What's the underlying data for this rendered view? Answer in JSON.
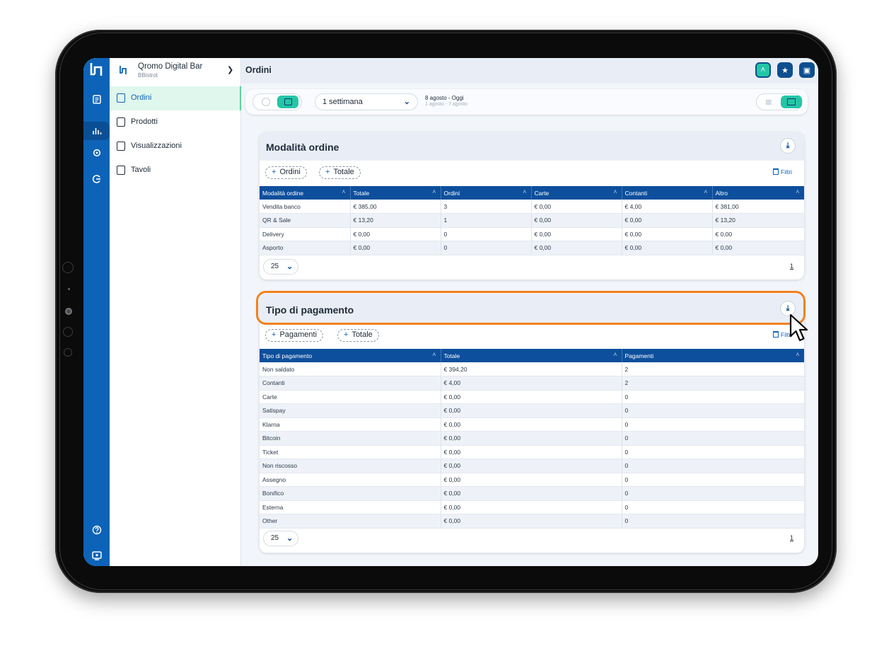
{
  "sidebar": {
    "venue_name": "Qromo Digital Bar",
    "venue_sub": "BBistrot",
    "items": [
      {
        "label": "Ordini",
        "active": true
      },
      {
        "label": "Prodotti",
        "active": false
      },
      {
        "label": "Visualizzazioni",
        "active": false
      },
      {
        "label": "Tavoli",
        "active": false
      }
    ],
    "rail_icons": [
      "logo-icon",
      "orders-icon",
      "stats-icon",
      "settings-icon",
      "integrations-icon",
      "help-icon",
      "screen-icon"
    ]
  },
  "header": {
    "title": "Ordini",
    "buttons": [
      "chevron-up-icon",
      "star-icon",
      "calendar-icon"
    ]
  },
  "filter_bar": {
    "period": "1 settimana",
    "date_range": "8 agosto - Oggi",
    "date_compare": "1 agosto - 7 agosto"
  },
  "colors": {
    "brand_blue": "#0d63b7",
    "table_header": "#0d4f9c",
    "accent_green": "#23c6a6",
    "highlight_orange": "#f0821e"
  },
  "order_mode": {
    "title": "Modalità ordine",
    "chips": [
      "Ordini",
      "Totale"
    ],
    "filters_label": "Filtri",
    "columns": [
      "Modalità ordine",
      "Totale",
      "Ordini",
      "Carte",
      "Contanti",
      "Altro"
    ],
    "rows": [
      [
        "Vendita banco",
        "€ 385,00",
        "3",
        "€ 0,00",
        "€ 4,00",
        "€ 381,00"
      ],
      [
        "QR & Sale",
        "€ 13,20",
        "1",
        "€ 0,00",
        "€ 0,00",
        "€ 13,20"
      ],
      [
        "Delivery",
        "€ 0,00",
        "0",
        "€ 0,00",
        "€ 0,00",
        "€ 0,00"
      ],
      [
        "Asporto",
        "€ 0,00",
        "0",
        "€ 0,00",
        "€ 0,00",
        "€ 0,00"
      ]
    ],
    "page_size": "25",
    "page": "1"
  },
  "payment_type": {
    "title": "Tipo di pagamento",
    "chips": [
      "Pagamenti",
      "Totale"
    ],
    "filters_label": "Filtri",
    "columns": [
      "Tipo di pagamento",
      "Totale",
      "Pagamenti"
    ],
    "rows": [
      [
        "Non saldato",
        "€ 394,20",
        "2"
      ],
      [
        "Contanti",
        "€ 4,00",
        "2"
      ],
      [
        "Carte",
        "€ 0,00",
        "0"
      ],
      [
        "Satispay",
        "€ 0,00",
        "0"
      ],
      [
        "Klarna",
        "€ 0,00",
        "0"
      ],
      [
        "Bitcoin",
        "€ 0,00",
        "0"
      ],
      [
        "Ticket",
        "€ 0,00",
        "0"
      ],
      [
        "Non riscosso",
        "€ 0,00",
        "0"
      ],
      [
        "Assegno",
        "€ 0,00",
        "0"
      ],
      [
        "Bonifico",
        "€ 0,00",
        "0"
      ],
      [
        "Esterna",
        "€ 0,00",
        "0"
      ],
      [
        "Other",
        "€ 0,00",
        "0"
      ]
    ],
    "page_size": "25",
    "page": "1"
  }
}
